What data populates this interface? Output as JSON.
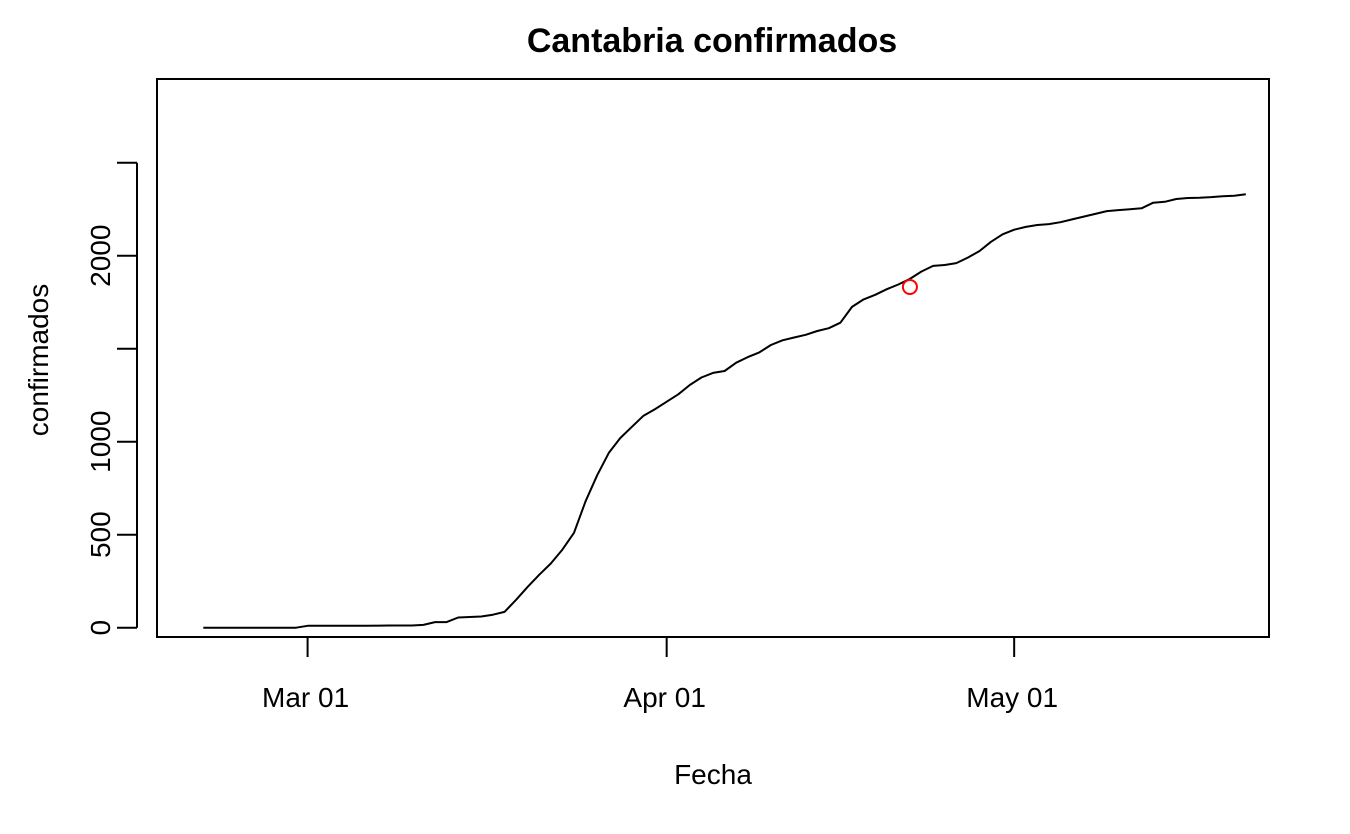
{
  "chart_data": {
    "type": "line",
    "title": "Cantabria confirmados",
    "xlabel": "Fecha",
    "ylabel": "confirmados",
    "x_ticks": [
      {
        "date": "2020-03-01",
        "label": "Mar 01"
      },
      {
        "date": "2020-04-01",
        "label": "Apr 01"
      },
      {
        "date": "2020-05-01",
        "label": "May 01"
      }
    ],
    "y_ticks": [
      {
        "value": 0,
        "label": "0"
      },
      {
        "value": 500,
        "label": "500"
      },
      {
        "value": 1000,
        "label": "1000"
      },
      {
        "value": 1500,
        "label": ""
      },
      {
        "value": 2000,
        "label": "2000"
      },
      {
        "value": 2500,
        "label": ""
      }
    ],
    "xlim": [
      "2020-02-17",
      "2020-05-23"
    ],
    "ylim": [
      -50,
      2950
    ],
    "grid": false,
    "series": [
      {
        "line_color": "#000000",
        "points": [
          [
            "2020-02-21",
            0
          ],
          [
            "2020-02-24",
            0
          ],
          [
            "2020-02-27",
            0
          ],
          [
            "2020-02-29",
            0
          ],
          [
            "2020-03-01",
            10
          ],
          [
            "2020-03-04",
            10
          ],
          [
            "2020-03-06",
            10
          ],
          [
            "2020-03-08",
            12
          ],
          [
            "2020-03-10",
            12
          ],
          [
            "2020-03-11",
            15
          ],
          [
            "2020-03-12",
            30
          ],
          [
            "2020-03-13",
            30
          ],
          [
            "2020-03-14",
            55
          ],
          [
            "2020-03-16",
            60
          ],
          [
            "2020-03-17",
            70
          ],
          [
            "2020-03-18",
            85
          ],
          [
            "2020-03-19",
            150
          ],
          [
            "2020-03-20",
            220
          ],
          [
            "2020-03-21",
            285
          ],
          [
            "2020-03-22",
            345
          ],
          [
            "2020-03-23",
            420
          ],
          [
            "2020-03-24",
            510
          ],
          [
            "2020-03-25",
            680
          ],
          [
            "2020-03-26",
            820
          ],
          [
            "2020-03-27",
            940
          ],
          [
            "2020-03-28",
            1020
          ],
          [
            "2020-03-29",
            1080
          ],
          [
            "2020-03-30",
            1140
          ],
          [
            "2020-03-31",
            1175
          ],
          [
            "2020-04-01",
            1215
          ],
          [
            "2020-04-02",
            1255
          ],
          [
            "2020-04-03",
            1305
          ],
          [
            "2020-04-04",
            1345
          ],
          [
            "2020-04-05",
            1370
          ],
          [
            "2020-04-06",
            1380
          ],
          [
            "2020-04-07",
            1425
          ],
          [
            "2020-04-08",
            1455
          ],
          [
            "2020-04-09",
            1480
          ],
          [
            "2020-04-10",
            1520
          ],
          [
            "2020-04-11",
            1545
          ],
          [
            "2020-04-12",
            1560
          ],
          [
            "2020-04-13",
            1575
          ],
          [
            "2020-04-14",
            1595
          ],
          [
            "2020-04-15",
            1610
          ],
          [
            "2020-04-16",
            1640
          ],
          [
            "2020-04-17",
            1725
          ],
          [
            "2020-04-18",
            1765
          ],
          [
            "2020-04-19",
            1790
          ],
          [
            "2020-04-20",
            1820
          ],
          [
            "2020-04-21",
            1845
          ],
          [
            "2020-04-22",
            1875
          ],
          [
            "2020-04-23",
            1915
          ],
          [
            "2020-04-24",
            1945
          ],
          [
            "2020-04-25",
            1950
          ],
          [
            "2020-04-26",
            1960
          ],
          [
            "2020-04-27",
            1990
          ],
          [
            "2020-04-28",
            2025
          ],
          [
            "2020-04-29",
            2075
          ],
          [
            "2020-04-30",
            2115
          ],
          [
            "2020-05-01",
            2140
          ],
          [
            "2020-05-02",
            2155
          ],
          [
            "2020-05-03",
            2165
          ],
          [
            "2020-05-04",
            2170
          ],
          [
            "2020-05-05",
            2180
          ],
          [
            "2020-05-06",
            2195
          ],
          [
            "2020-05-07",
            2210
          ],
          [
            "2020-05-08",
            2225
          ],
          [
            "2020-05-09",
            2240
          ],
          [
            "2020-05-10",
            2245
          ],
          [
            "2020-05-11",
            2250
          ],
          [
            "2020-05-12",
            2255
          ],
          [
            "2020-05-13",
            2285
          ],
          [
            "2020-05-14",
            2290
          ],
          [
            "2020-05-15",
            2305
          ],
          [
            "2020-05-16",
            2310
          ],
          [
            "2020-05-17",
            2312
          ],
          [
            "2020-05-18",
            2315
          ],
          [
            "2020-05-19",
            2320
          ],
          [
            "2020-05-20",
            2322
          ],
          [
            "2020-05-21",
            2330
          ]
        ]
      }
    ],
    "highlight_point": {
      "date": "2020-04-22",
      "value": 1875,
      "color": "#ff0000",
      "shape": "open-circle"
    }
  }
}
